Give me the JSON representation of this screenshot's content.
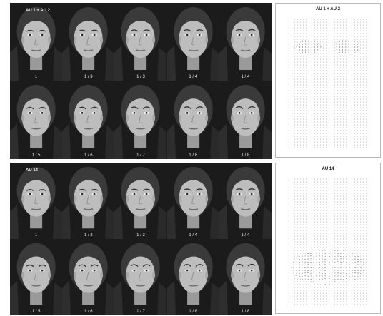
{
  "panels": [
    {
      "title": "AU 1 + AU 2",
      "frame_labels": [
        "1",
        "1 / 3",
        "1 / 3",
        "1 / 4",
        "1 / 4",
        "1 / 5",
        "1 / 6",
        "1 / 7",
        "1 / 8",
        "1 / 8"
      ],
      "flow_title": "AU 1 + AU 2",
      "flow_region": "brows"
    },
    {
      "title": "AU 14",
      "frame_labels": [
        "1",
        "1 / 3",
        "1 / 3",
        "1 / 4",
        "1 / 4",
        "1 / 5",
        "1 / 6",
        "1 / 7",
        "1 / 8",
        "1 / 8"
      ],
      "flow_title": "AU 14",
      "flow_region": "mouth"
    }
  ],
  "colors": {
    "background": "#ffffff",
    "frame_bg": "#1b1b1b",
    "skin": "#bdbdbd",
    "hair": "#3a3a3a",
    "flow_ink": "#555555"
  }
}
